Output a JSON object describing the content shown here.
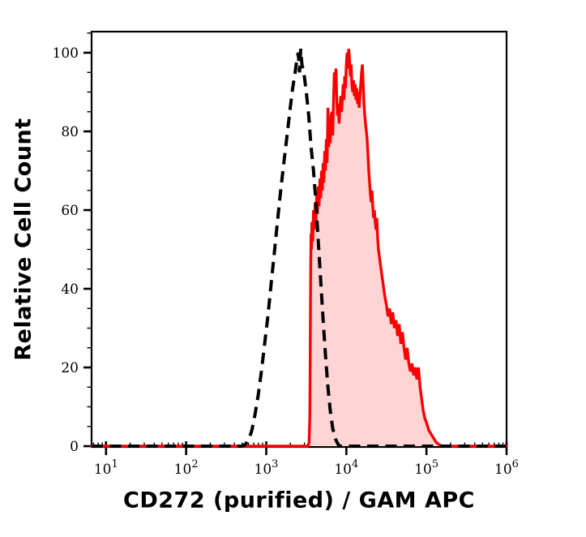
{
  "figure": {
    "title": "",
    "background": "#ffffff"
  },
  "chart_data": {
    "type": "area",
    "subtype": "flow-cytometry-histogram-overlay",
    "title": "",
    "xlabel": "CD272 (purified) / GAM APC",
    "ylabel": "Relative Cell Count",
    "x_scale": "log10",
    "xlim_log10": [
      0.82,
      6.0
    ],
    "ylim": [
      0,
      105.5
    ],
    "grid": false,
    "legend": "none",
    "x_ticks": {
      "base_label": "10",
      "major_exponents": [
        1,
        2,
        3,
        4,
        5,
        6
      ],
      "minor_multiples": [
        2,
        3,
        4,
        5,
        6,
        7,
        8,
        9
      ]
    },
    "y_ticks": {
      "major_values": [
        0,
        20,
        40,
        60,
        80,
        100
      ],
      "major_labels": [
        "0",
        "20",
        "40",
        "60",
        "80",
        "100"
      ],
      "minor_step": 5
    },
    "colors": {
      "sample_line": "#fa0000",
      "sample_fill": "#ffd4d4",
      "control_line": "#000000",
      "axis": "#000000",
      "background": "#ffffff"
    },
    "series": [
      {
        "name": "negative-control-dashed",
        "line_style": "dashed",
        "color": "#000000",
        "fill": false,
        "points_log10x_count": [
          [
            0.82,
            0
          ],
          [
            2.7,
            0
          ],
          [
            2.74,
            0.5
          ],
          [
            2.78,
            1.5
          ],
          [
            2.82,
            4
          ],
          [
            2.86,
            8
          ],
          [
            2.9,
            13
          ],
          [
            2.94,
            19
          ],
          [
            2.98,
            26
          ],
          [
            3.02,
            33
          ],
          [
            3.06,
            41
          ],
          [
            3.1,
            49
          ],
          [
            3.14,
            57
          ],
          [
            3.18,
            65
          ],
          [
            3.22,
            72
          ],
          [
            3.26,
            79
          ],
          [
            3.3,
            86
          ],
          [
            3.33,
            91
          ],
          [
            3.36,
            95
          ],
          [
            3.385,
            98.5
          ],
          [
            3.4,
            100
          ],
          [
            3.415,
            95
          ],
          [
            3.43,
            101
          ],
          [
            3.445,
            97
          ],
          [
            3.47,
            95
          ],
          [
            3.5,
            90
          ],
          [
            3.53,
            84
          ],
          [
            3.56,
            76
          ],
          [
            3.59,
            70
          ],
          [
            3.62,
            62
          ],
          [
            3.65,
            52
          ],
          [
            3.68,
            42
          ],
          [
            3.71,
            32
          ],
          [
            3.74,
            23
          ],
          [
            3.77,
            15
          ],
          [
            3.8,
            9
          ],
          [
            3.83,
            4.5
          ],
          [
            3.87,
            1.5
          ],
          [
            3.91,
            0
          ],
          [
            6.0,
            0
          ]
        ]
      },
      {
        "name": "cd272-stained-sample-red",
        "line_style": "solid",
        "color": "#fa0000",
        "fill": true,
        "points_log10x_count": [
          [
            0.82,
            0
          ],
          [
            3.52,
            0
          ],
          [
            3.535,
            1
          ],
          [
            3.545,
            8
          ],
          [
            3.55,
            25
          ],
          [
            3.555,
            45
          ],
          [
            3.56,
            54
          ],
          [
            3.565,
            50
          ],
          [
            3.57,
            57
          ],
          [
            3.58,
            52
          ],
          [
            3.59,
            60
          ],
          [
            3.6,
            55
          ],
          [
            3.61,
            62
          ],
          [
            3.62,
            57
          ],
          [
            3.63,
            64
          ],
          [
            3.64,
            59
          ],
          [
            3.65,
            66
          ],
          [
            3.66,
            61
          ],
          [
            3.67,
            68
          ],
          [
            3.68,
            63
          ],
          [
            3.69,
            70
          ],
          [
            3.7,
            65
          ],
          [
            3.71,
            72
          ],
          [
            3.72,
            67
          ],
          [
            3.73,
            75
          ],
          [
            3.74,
            70
          ],
          [
            3.75,
            78
          ],
          [
            3.76,
            72
          ],
          [
            3.77,
            86
          ],
          [
            3.78,
            76
          ],
          [
            3.79,
            81
          ],
          [
            3.8,
            77
          ],
          [
            3.81,
            84
          ],
          [
            3.82,
            85
          ],
          [
            3.83,
            79
          ],
          [
            3.84,
            88
          ],
          [
            3.85,
            95
          ],
          [
            3.86,
            90
          ],
          [
            3.87,
            96
          ],
          [
            3.88,
            88
          ],
          [
            3.89,
            84
          ],
          [
            3.9,
            87
          ],
          [
            3.91,
            82
          ],
          [
            3.92,
            86
          ],
          [
            3.93,
            89
          ],
          [
            3.94,
            85
          ],
          [
            3.95,
            88
          ],
          [
            3.96,
            92
          ],
          [
            3.97,
            88
          ],
          [
            3.98,
            94
          ],
          [
            3.99,
            91
          ],
          [
            4.0,
            97
          ],
          [
            4.01,
            100
          ],
          [
            4.02,
            96
          ],
          [
            4.03,
            101
          ],
          [
            4.04,
            98
          ],
          [
            4.05,
            94
          ],
          [
            4.06,
            97
          ],
          [
            4.07,
            92
          ],
          [
            4.08,
            90
          ],
          [
            4.09,
            93
          ],
          [
            4.1,
            89
          ],
          [
            4.11,
            92
          ],
          [
            4.12,
            88
          ],
          [
            4.13,
            91
          ],
          [
            4.14,
            87
          ],
          [
            4.15,
            90
          ],
          [
            4.16,
            86
          ],
          [
            4.17,
            89
          ],
          [
            4.18,
            92
          ],
          [
            4.19,
            95
          ],
          [
            4.2,
            97
          ],
          [
            4.21,
            92
          ],
          [
            4.22,
            87
          ],
          [
            4.23,
            84
          ],
          [
            4.24,
            82
          ],
          [
            4.26,
            78
          ],
          [
            4.27,
            74
          ],
          [
            4.28,
            70
          ],
          [
            4.29,
            67
          ],
          [
            4.3,
            64
          ],
          [
            4.31,
            62
          ],
          [
            4.32,
            65
          ],
          [
            4.33,
            61
          ],
          [
            4.34,
            58
          ],
          [
            4.35,
            60
          ],
          [
            4.36,
            57
          ],
          [
            4.37,
            55
          ],
          [
            4.38,
            58
          ],
          [
            4.39,
            53
          ],
          [
            4.4,
            50
          ],
          [
            4.42,
            47
          ],
          [
            4.44,
            44
          ],
          [
            4.46,
            41
          ],
          [
            4.48,
            38
          ],
          [
            4.5,
            36
          ],
          [
            4.52,
            33
          ],
          [
            4.54,
            35
          ],
          [
            4.56,
            31
          ],
          [
            4.58,
            34
          ],
          [
            4.6,
            30
          ],
          [
            4.62,
            32
          ],
          [
            4.64,
            28
          ],
          [
            4.66,
            31
          ],
          [
            4.68,
            26
          ],
          [
            4.7,
            29
          ],
          [
            4.72,
            25
          ],
          [
            4.74,
            22
          ],
          [
            4.76,
            25
          ],
          [
            4.78,
            21
          ],
          [
            4.8,
            19
          ],
          [
            4.82,
            21
          ],
          [
            4.84,
            18
          ],
          [
            4.86,
            20
          ],
          [
            4.88,
            17
          ],
          [
            4.9,
            20
          ],
          [
            4.92,
            15
          ],
          [
            4.94,
            12
          ],
          [
            4.96,
            9
          ],
          [
            4.98,
            7
          ],
          [
            5.0,
            6
          ],
          [
            5.03,
            4
          ],
          [
            5.06,
            3
          ],
          [
            5.09,
            2
          ],
          [
            5.12,
            1
          ],
          [
            5.15,
            0.5
          ],
          [
            5.19,
            0
          ],
          [
            6.0,
            0
          ]
        ]
      }
    ]
  }
}
